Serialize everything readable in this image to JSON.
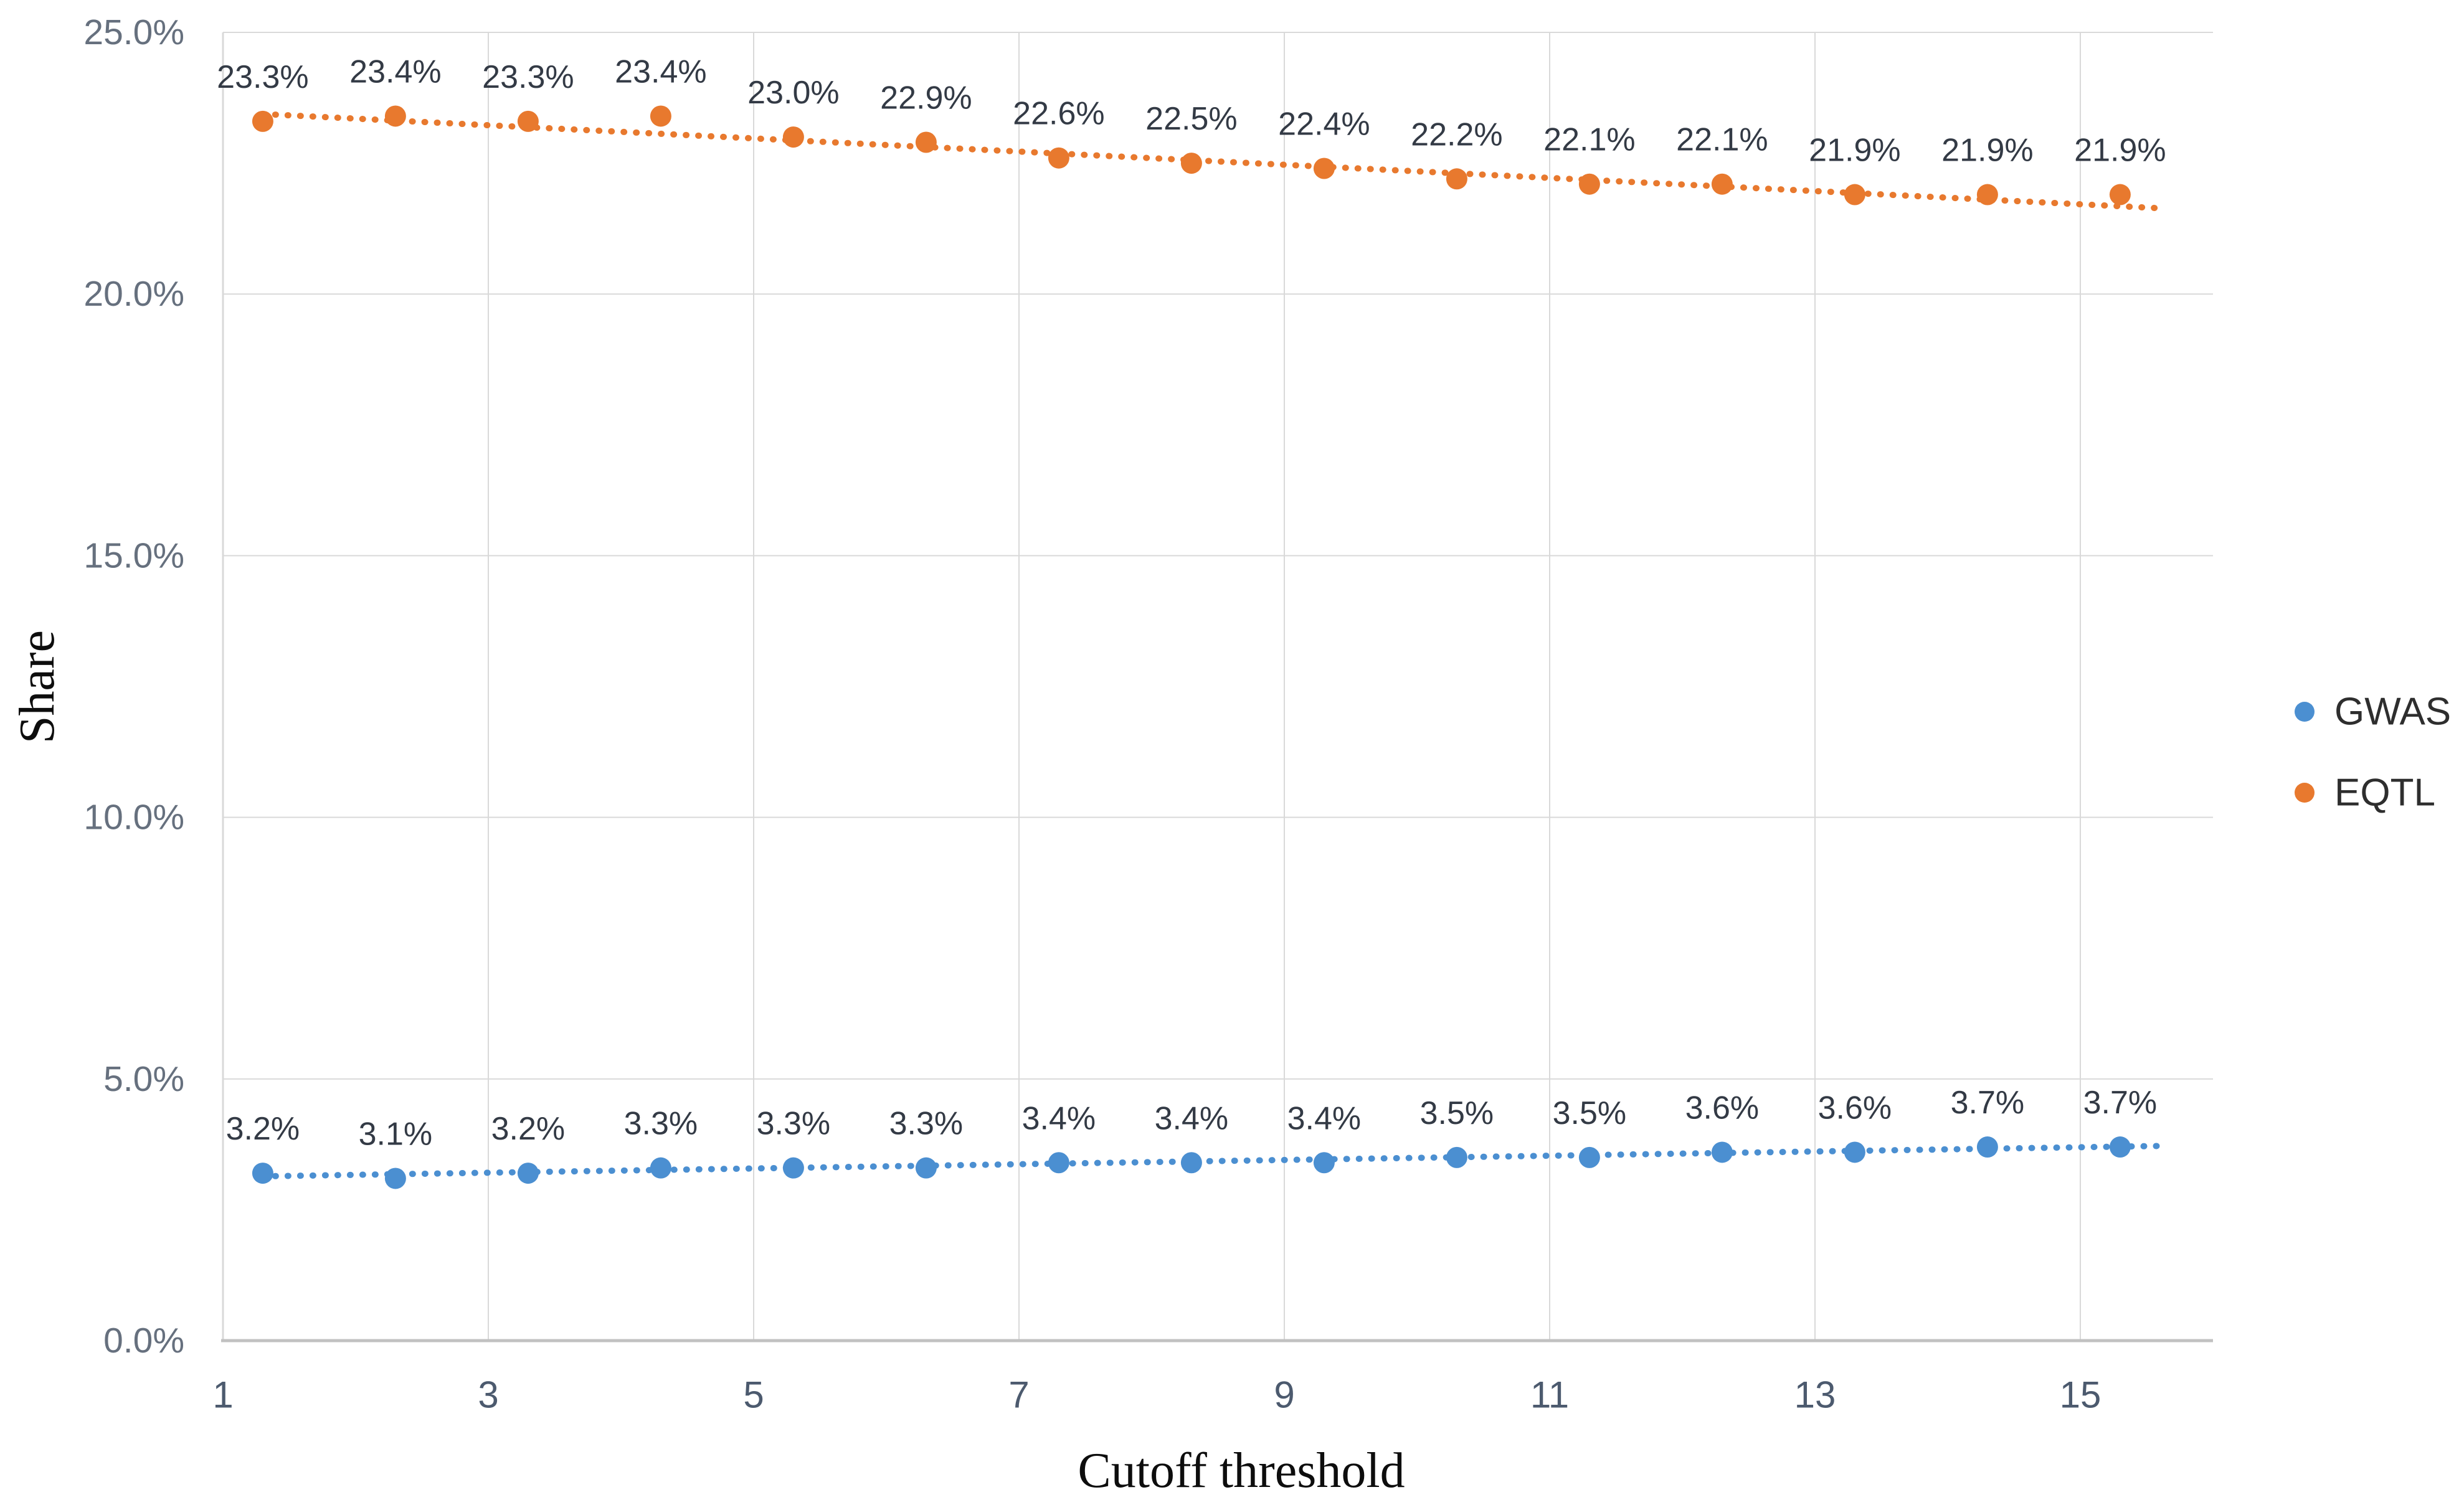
{
  "chart_data": {
    "type": "scatter",
    "title": "",
    "xlabel": "Cutoff threshold",
    "ylabel": "Share",
    "xlim": [
      1,
      16
    ],
    "ylim_percent": [
      0,
      25
    ],
    "grid": true,
    "legend_position": "right-middle",
    "x_ticks": [
      {
        "value": 1,
        "label": "1"
      },
      {
        "value": 3,
        "label": "3"
      },
      {
        "value": 5,
        "label": "5"
      },
      {
        "value": 7,
        "label": "7"
      },
      {
        "value": 9,
        "label": "9"
      },
      {
        "value": 11,
        "label": "11"
      },
      {
        "value": 13,
        "label": "13"
      },
      {
        "value": 15,
        "label": "15"
      }
    ],
    "y_ticks": [
      {
        "value": 0,
        "label": "0.0%"
      },
      {
        "value": 5,
        "label": "5.0%"
      },
      {
        "value": 10,
        "label": "10.0%"
      },
      {
        "value": 15,
        "label": "15.0%"
      },
      {
        "value": 20,
        "label": "20.0%"
      },
      {
        "value": 25,
        "label": "25.0%"
      }
    ],
    "x": [
      1.3,
      2.3,
      3.3,
      4.3,
      5.3,
      6.3,
      7.3,
      8.3,
      9.3,
      10.3,
      11.3,
      12.3,
      13.3,
      14.3,
      15.3
    ],
    "series": [
      {
        "name": "GWAS",
        "color": "#4b8fd1",
        "marker": "circle-dot",
        "line_style": "dotted-trend",
        "values_percent": [
          3.2,
          3.1,
          3.2,
          3.3,
          3.3,
          3.3,
          3.4,
          3.4,
          3.4,
          3.5,
          3.5,
          3.6,
          3.6,
          3.7,
          3.7
        ],
        "labels": [
          "3.2%",
          "3.1%",
          "3.2%",
          "3.3%",
          "3.3%",
          "3.3%",
          "3.4%",
          "3.4%",
          "3.4%",
          "3.5%",
          "3.5%",
          "3.6%",
          "3.6%",
          "3.7%",
          "3.7%"
        ],
        "trend": {
          "x1": 1.3,
          "y1": 3.14,
          "x2": 15.6,
          "y2": 3.72
        }
      },
      {
        "name": "EQTL",
        "color": "#e8792e",
        "marker": "circle-dot",
        "line_style": "dotted-trend",
        "values_percent": [
          23.3,
          23.4,
          23.3,
          23.4,
          23.0,
          22.9,
          22.6,
          22.5,
          22.4,
          22.2,
          22.1,
          22.1,
          21.9,
          21.9,
          21.9
        ],
        "labels": [
          "23.3%",
          "23.4%",
          "23.3%",
          "23.4%",
          "23.0%",
          "22.9%",
          "22.6%",
          "22.5%",
          "22.4%",
          "22.2%",
          "22.1%",
          "22.1%",
          "21.9%",
          "21.9%",
          "21.9%"
        ],
        "trend": {
          "x1": 1.3,
          "y1": 23.44,
          "x2": 15.6,
          "y2": 21.64
        }
      }
    ],
    "colors": {
      "background": "#ffffff",
      "gridline": "#d9d9d9",
      "axis_line": "#c1c1c1",
      "tick_text": "#4c5a6e",
      "data_label_text": "#333a45",
      "axis_title_text": "#0d0d0d"
    }
  }
}
